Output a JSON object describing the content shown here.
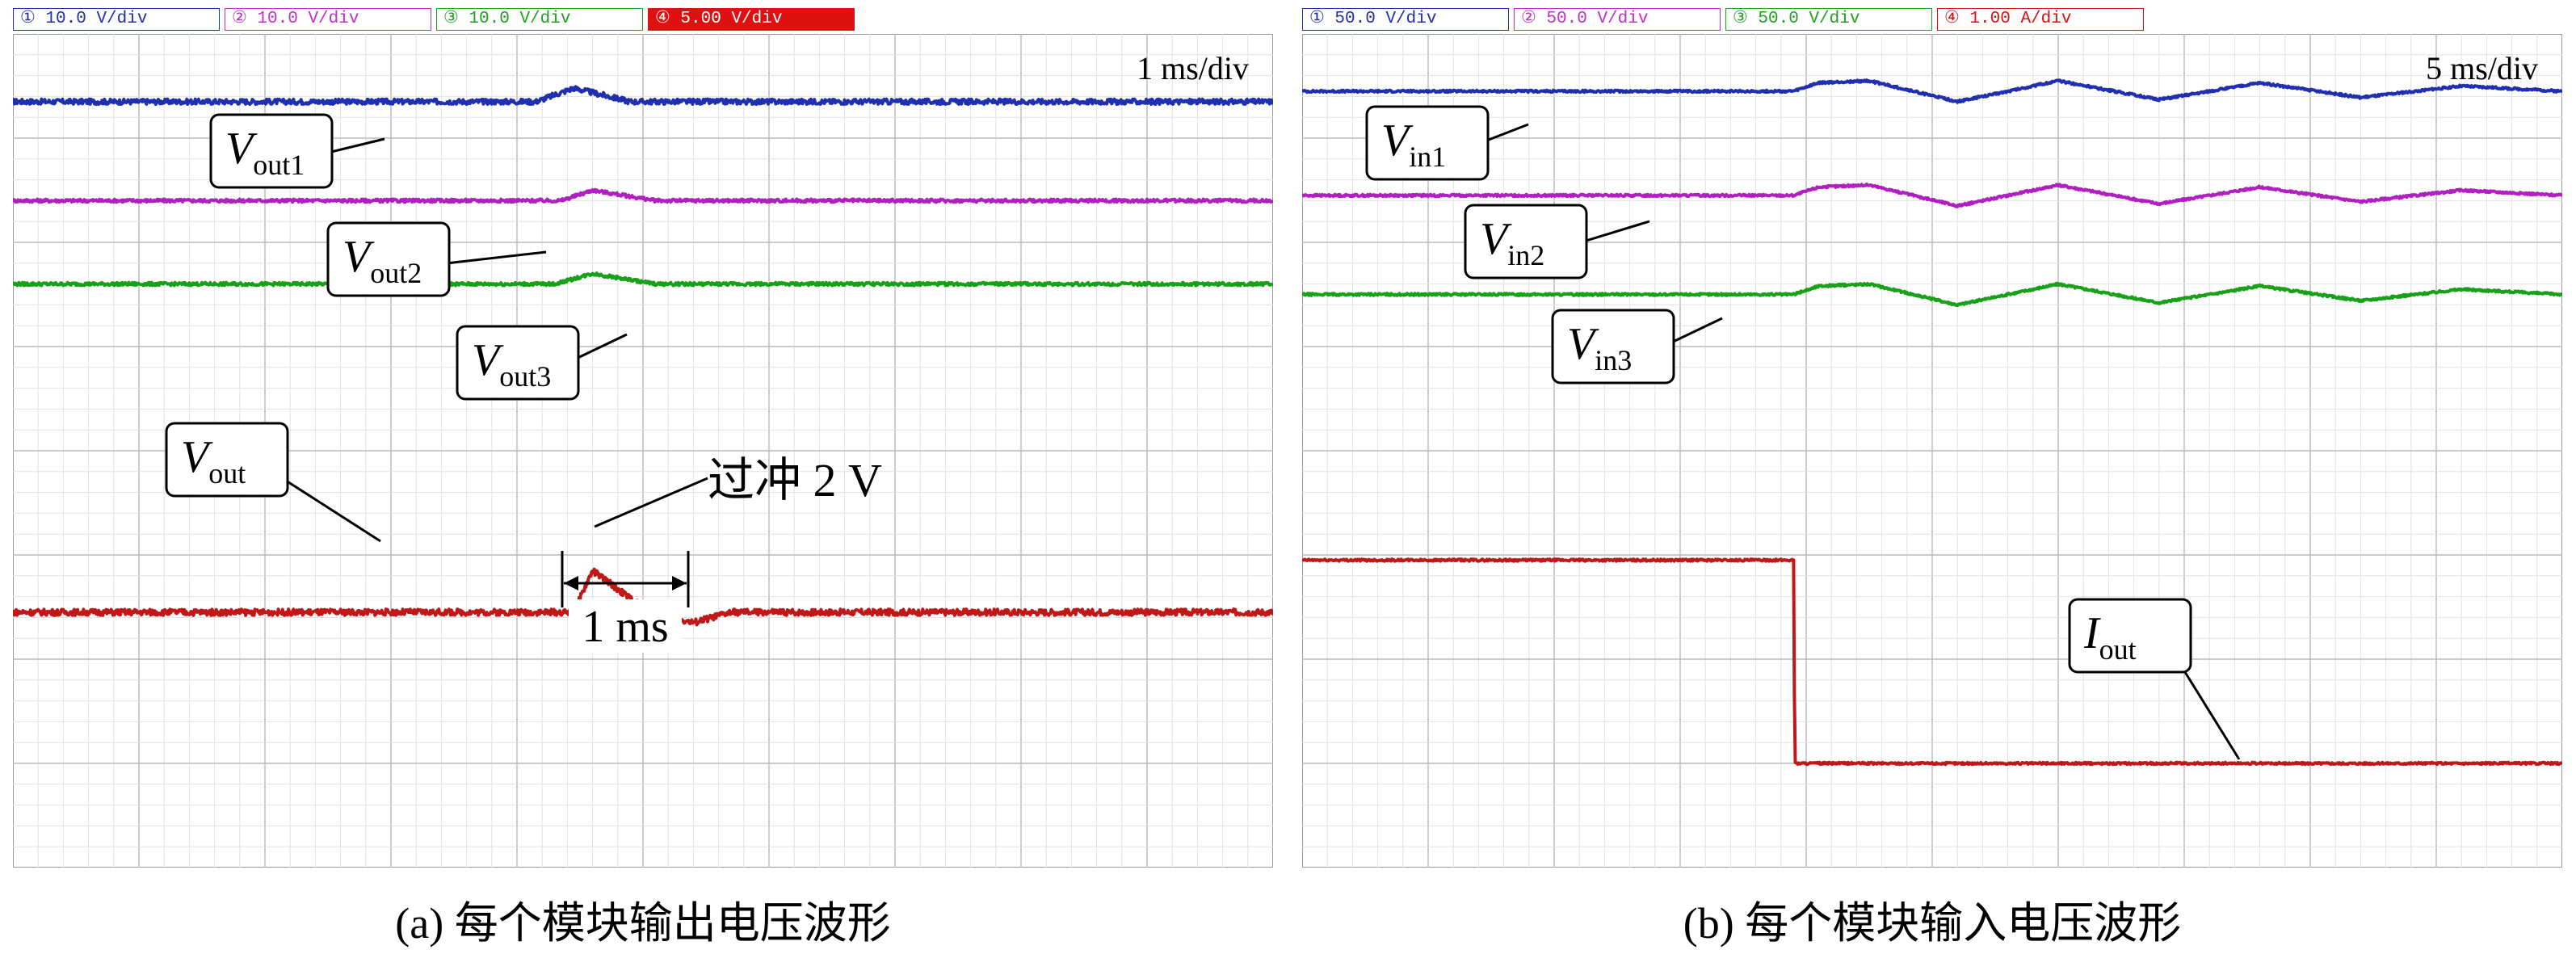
{
  "chart_data": [
    {
      "type": "line",
      "title": "",
      "caption": "(a) 每个模块输出电压波形",
      "timebase_label": "1 ms/div",
      "channels": [
        {
          "label": "① 10.0 V/div",
          "color": "#1f2fb0"
        },
        {
          "label": "② 10.0 V/div",
          "color": "#c030c8"
        },
        {
          "label": "③ 10.0 V/div",
          "color": "#20a020"
        },
        {
          "label": "④ 5.00 V/div",
          "color": "#e01010"
        }
      ],
      "divisions": {
        "x": 10,
        "y": 8
      },
      "series": [
        {
          "name": "out1",
          "level_div": 7.35,
          "color": "#1f2fb0",
          "noise": 0.05,
          "points": [
            [
              0,
              0
            ],
            [
              4.15,
              0
            ],
            [
              4.45,
              0.13
            ],
            [
              4.9,
              0
            ],
            [
              10,
              0
            ]
          ]
        },
        {
          "name": "out2",
          "level_div": 6.4,
          "color": "#b020c0",
          "noise": 0.03,
          "points": [
            [
              0,
              0
            ],
            [
              4.35,
              0
            ],
            [
              4.6,
              0.1
            ],
            [
              5.1,
              0
            ],
            [
              10,
              0
            ]
          ]
        },
        {
          "name": "out3",
          "level_div": 5.6,
          "color": "#18a018",
          "noise": 0.03,
          "points": [
            [
              0,
              0
            ],
            [
              4.3,
              0
            ],
            [
              4.6,
              0.1
            ],
            [
              5.1,
              0
            ],
            [
              10,
              0
            ]
          ]
        },
        {
          "name": "out",
          "level_div": 2.45,
          "color": "#c01818",
          "noise": 0.06,
          "points": [
            [
              0,
              0
            ],
            [
              4.45,
              0
            ],
            [
              4.6,
              0.4
            ],
            [
              5.05,
              0
            ],
            [
              5.4,
              -0.1
            ],
            [
              5.7,
              0
            ],
            [
              10,
              0
            ]
          ]
        }
      ],
      "labels": [
        {
          "sym": "V",
          "sub": "out1"
        },
        {
          "sym": "V",
          "sub": "out2"
        },
        {
          "sym": "V",
          "sub": "out3"
        },
        {
          "sym": "V",
          "sub": "out"
        }
      ],
      "annotations": [
        "过冲 2 V",
        "1 ms"
      ]
    },
    {
      "type": "line",
      "title": "",
      "caption": "(b) 每个模块输入电压波形",
      "timebase_label": "5 ms/div",
      "channels": [
        {
          "label": "① 50.0 V/div",
          "color": "#1f2fb0"
        },
        {
          "label": "② 50.0 V/div",
          "color": "#c030c8"
        },
        {
          "label": "③ 50.0 V/div",
          "color": "#20a020"
        },
        {
          "label": "④ 1.00 A/div",
          "color": "#e01010"
        }
      ],
      "divisions": {
        "x": 10,
        "y": 8
      },
      "series": [
        {
          "name": "in1",
          "level_div": 7.45,
          "color": "#1f2fb0",
          "noise": 0.02,
          "points": [
            [
              0,
              0
            ],
            [
              3.9,
              0
            ],
            [
              4.1,
              0.08
            ],
            [
              4.5,
              0.1
            ],
            [
              5.2,
              -0.1
            ],
            [
              6.0,
              0.1
            ],
            [
              6.8,
              -0.08
            ],
            [
              7.6,
              0.08
            ],
            [
              8.4,
              -0.06
            ],
            [
              9.2,
              0.05
            ],
            [
              10,
              0
            ]
          ]
        },
        {
          "name": "in2",
          "level_div": 6.45,
          "color": "#b020c0",
          "noise": 0.02,
          "points": [
            [
              0,
              0
            ],
            [
              3.9,
              0
            ],
            [
              4.1,
              0.08
            ],
            [
              4.5,
              0.1
            ],
            [
              5.2,
              -0.1
            ],
            [
              6.0,
              0.1
            ],
            [
              6.8,
              -0.08
            ],
            [
              7.6,
              0.08
            ],
            [
              8.4,
              -0.06
            ],
            [
              9.2,
              0.05
            ],
            [
              10,
              0
            ]
          ]
        },
        {
          "name": "in3",
          "level_div": 5.5,
          "color": "#18a018",
          "noise": 0.02,
          "points": [
            [
              0,
              0
            ],
            [
              3.9,
              0
            ],
            [
              4.1,
              0.08
            ],
            [
              4.5,
              0.1
            ],
            [
              5.2,
              -0.1
            ],
            [
              6.0,
              0.1
            ],
            [
              6.8,
              -0.08
            ],
            [
              7.6,
              0.08
            ],
            [
              8.4,
              -0.06
            ],
            [
              9.2,
              0.05
            ],
            [
              10,
              0
            ]
          ]
        },
        {
          "name": "out",
          "level_div": 2.95,
          "color": "#c01818",
          "noise": 0.02,
          "points": [
            [
              0,
              0
            ],
            [
              3.9,
              0
            ],
            [
              3.91,
              -1.95
            ],
            [
              10,
              -1.95
            ]
          ]
        }
      ],
      "labels": [
        {
          "sym": "V",
          "sub": "in1"
        },
        {
          "sym": "V",
          "sub": "in2"
        },
        {
          "sym": "V",
          "sub": "in3"
        },
        {
          "sym": "I",
          "sub": "out"
        }
      ],
      "annotations": []
    }
  ]
}
